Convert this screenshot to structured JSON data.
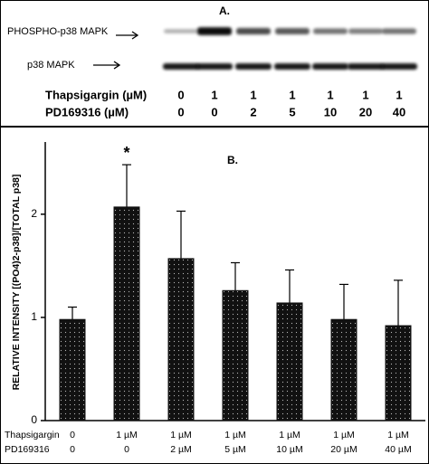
{
  "panel_a": {
    "label": "A.",
    "blot_labels": [
      "PHOSPHO-p38 MAPK",
      "p38 MAPK"
    ],
    "rows": [
      {
        "name": "Thapsigargin (µM)",
        "values": [
          0,
          1,
          1,
          1,
          1,
          1,
          1
        ]
      },
      {
        "name": "PD169316 (µM)",
        "values": [
          0,
          0,
          2,
          5,
          10,
          20,
          40
        ]
      }
    ]
  },
  "chart_data": {
    "type": "bar",
    "panel_label": "B.",
    "annotation": "*",
    "ylabel": "RELATIVE INTENSITY [(PO4)2-p38]/[TOTAL p38]",
    "x_label_rows": [
      {
        "name": "Thapsigargin",
        "labels": [
          "0",
          "1 µM",
          "1 µM",
          "1 µM",
          "1 µM",
          "1 µM",
          "1 µM"
        ]
      },
      {
        "name": "PD169316",
        "labels": [
          "0",
          "0",
          "2 µM",
          "5 µM",
          "10 µM",
          "20 µM",
          "40 µM"
        ]
      }
    ],
    "values": [
      0.98,
      2.07,
      1.57,
      1.26,
      1.14,
      0.98,
      0.92
    ],
    "errors": [
      0.12,
      0.41,
      0.46,
      0.27,
      0.32,
      0.34,
      0.44
    ],
    "color": "#111111",
    "ylim": [
      0,
      2.7
    ],
    "yticks": [
      0,
      1,
      2
    ]
  }
}
